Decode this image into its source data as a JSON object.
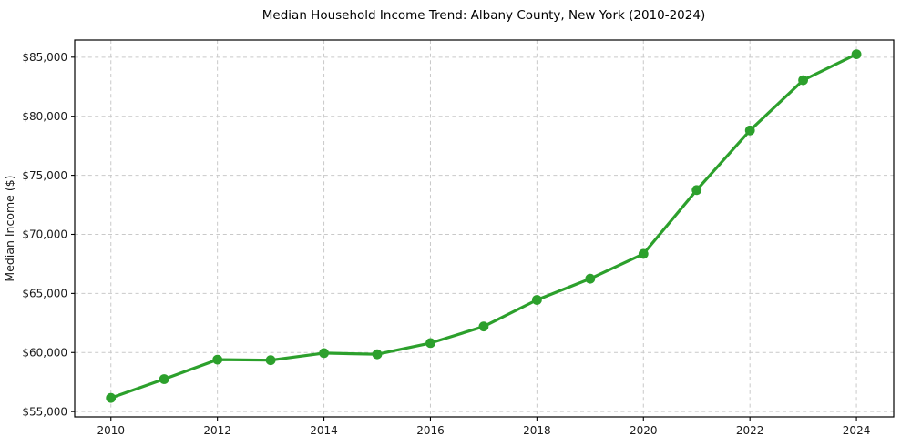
{
  "chart_data": {
    "type": "line",
    "title": "Median Household Income Trend: Albany County, New York (2010-2024)",
    "xlabel": "",
    "ylabel": "Median Income ($)",
    "x": [
      2010,
      2011,
      2012,
      2013,
      2014,
      2015,
      2016,
      2017,
      2018,
      2019,
      2020,
      2021,
      2022,
      2023,
      2024
    ],
    "series": [
      {
        "name": "Median Household Income",
        "values": [
          56150,
          57750,
          59400,
          59350,
          59950,
          59850,
          60800,
          62200,
          64450,
          66250,
          68350,
          73750,
          78800,
          83050,
          85250
        ]
      }
    ],
    "xticks": [
      2010,
      2012,
      2014,
      2016,
      2018,
      2020,
      2022,
      2024
    ],
    "xtick_labels": [
      "2010",
      "2012",
      "2014",
      "2016",
      "2018",
      "2020",
      "2022",
      "2024"
    ],
    "yticks": [
      55000,
      60000,
      65000,
      70000,
      75000,
      80000,
      85000
    ],
    "ytick_labels": [
      "$55,000",
      "$60,000",
      "$65,000",
      "$70,000",
      "$75,000",
      "$80,000",
      "$85,000"
    ],
    "xlim": [
      2009.32,
      2024.7
    ],
    "ylim": [
      54550,
      86450
    ],
    "grid": true,
    "grid_style": "dashed",
    "legend_position": "none",
    "line_color": "#2ca02c",
    "marker": "circle",
    "marker_color": "#2ca02c"
  }
}
